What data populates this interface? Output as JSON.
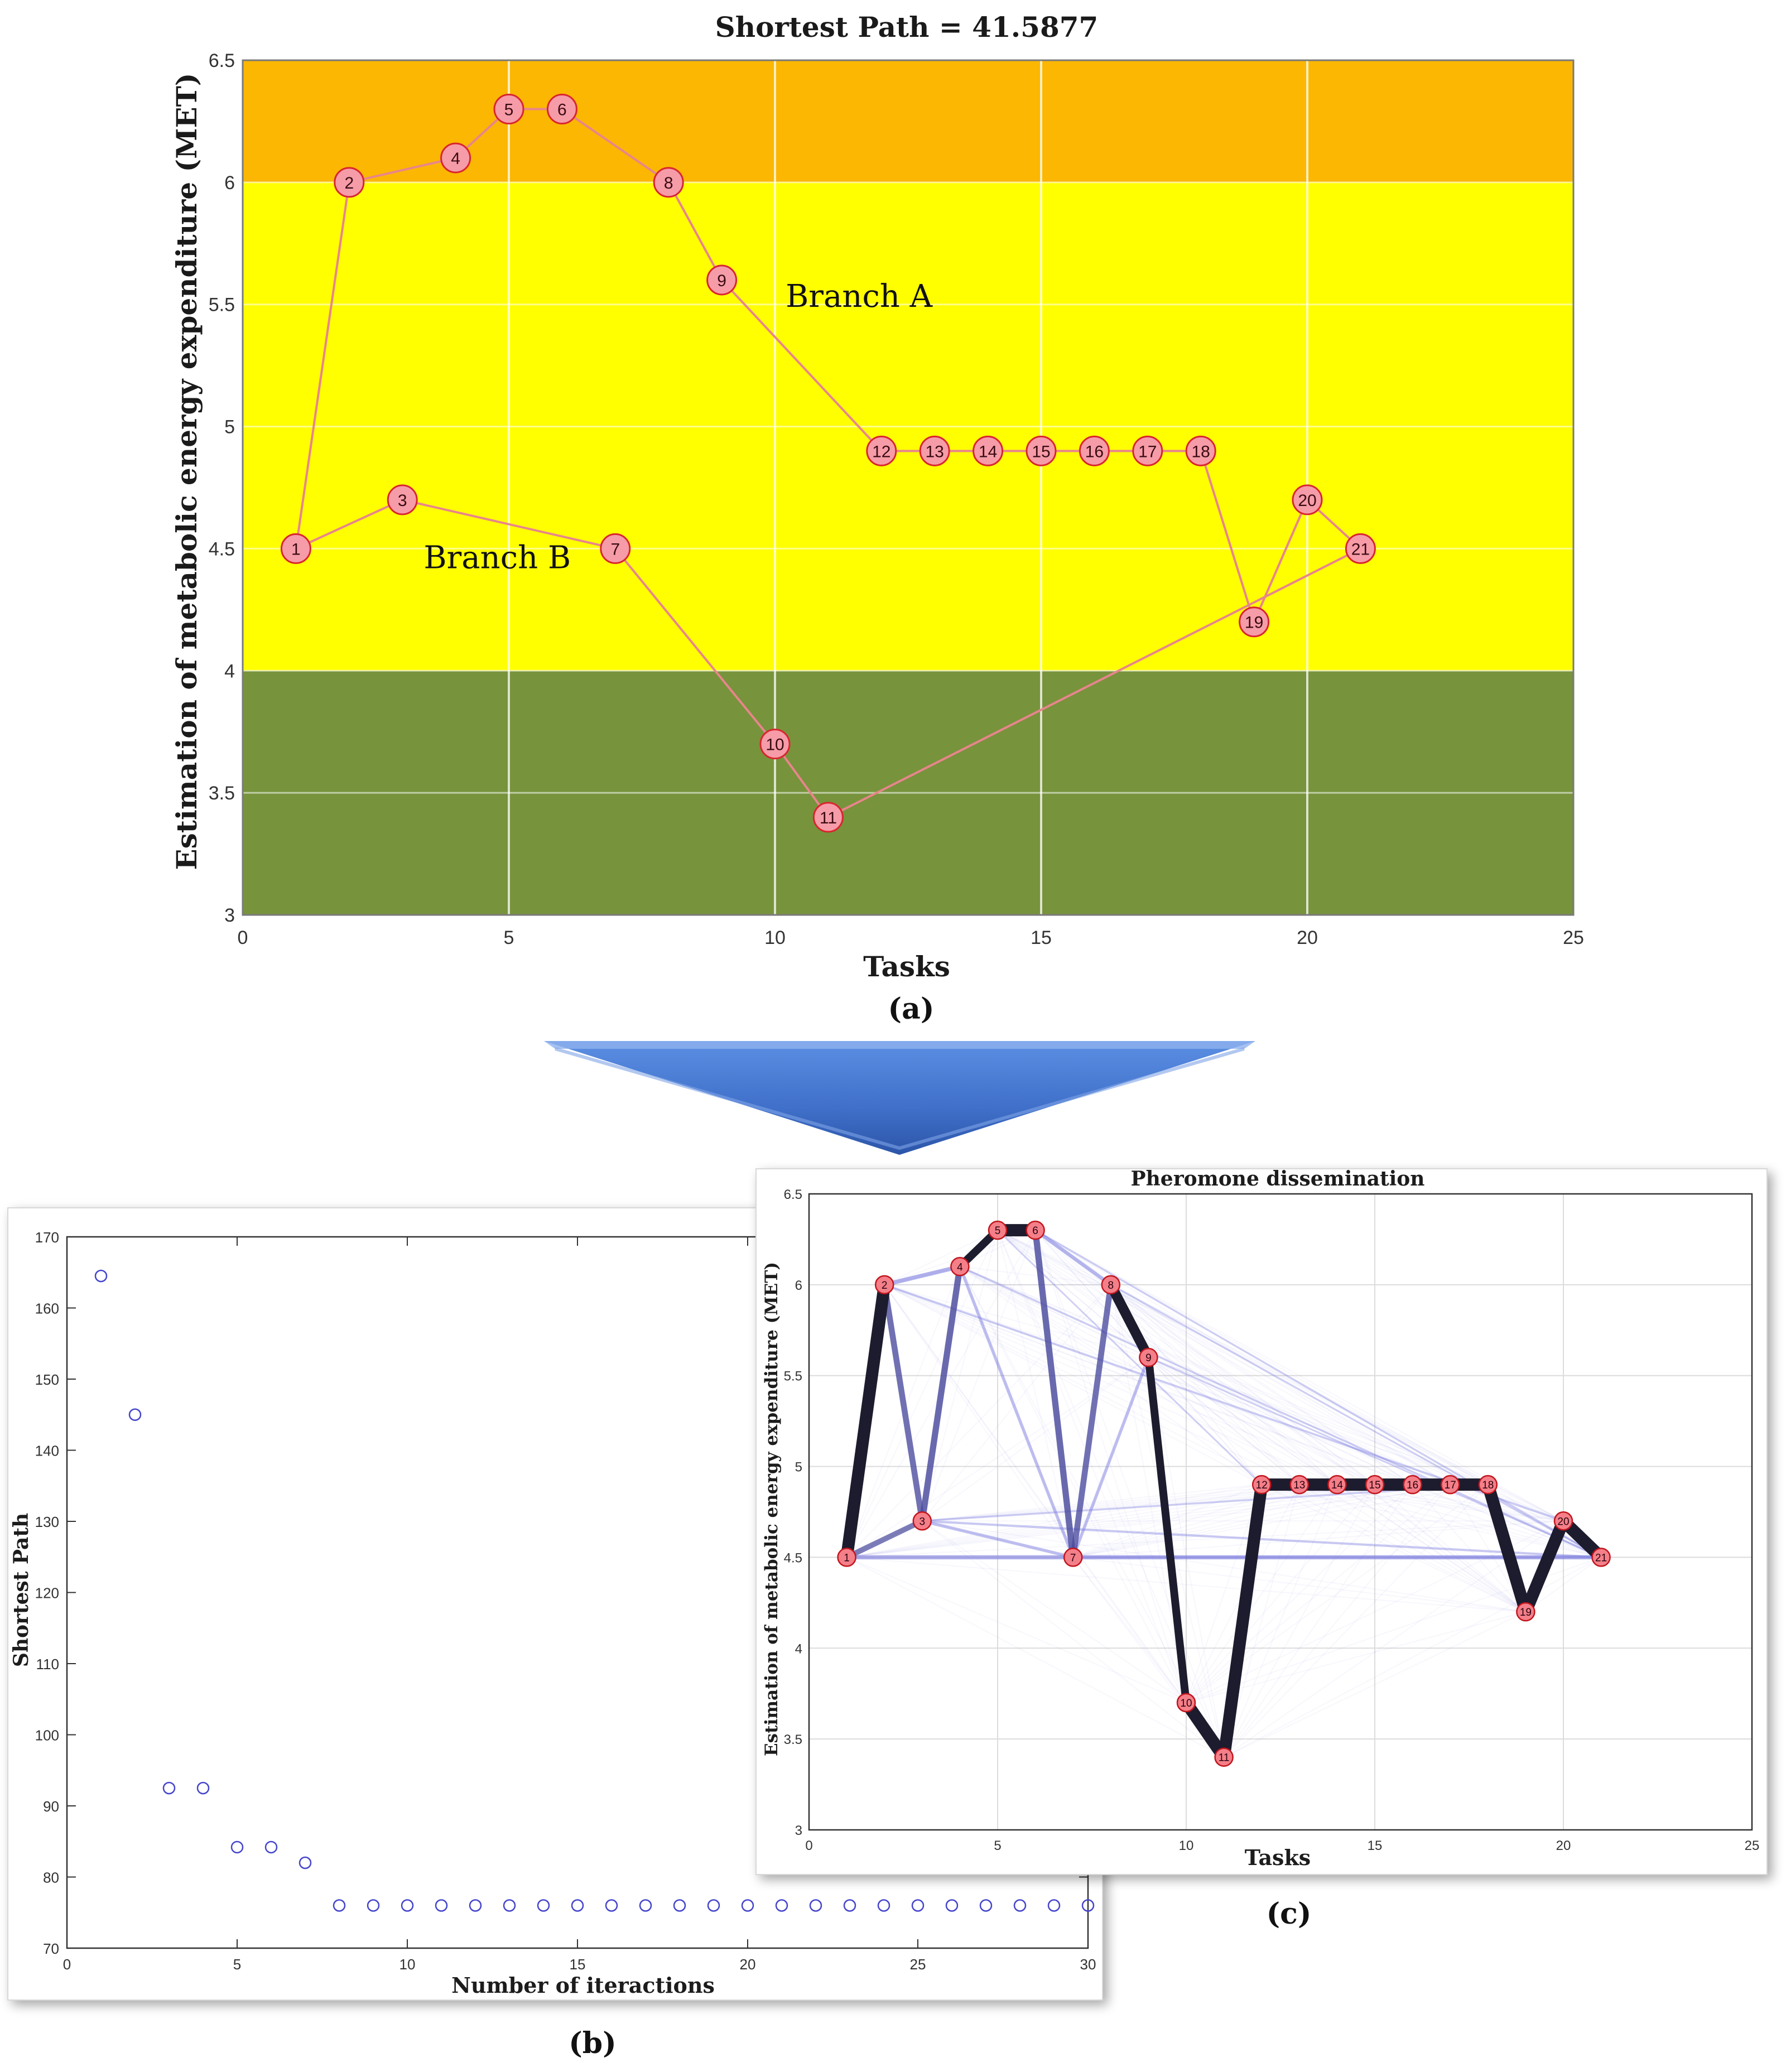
{
  "figure": {
    "label_a": "(a)",
    "label_b": "(b)",
    "label_c": "(c)"
  },
  "colors": {
    "red_zone": "#FBB701",
    "yellow_zone": "#FFFF00",
    "green_zone": "#77933C",
    "node_fill": "#F59CA8",
    "node_stroke": "#D9252F",
    "path_line": "#E8858C",
    "marker_b": "#4444CC",
    "pheromone": "#1A1A2E",
    "arrow": "#4F7FD6"
  },
  "chart_data": [
    {
      "id": "a",
      "type": "line",
      "title": "Shortest Path = 41.5877",
      "xlabel": "Tasks",
      "ylabel": "Estimation of metabolic energy expenditure (MET)",
      "xlim": [
        0,
        25
      ],
      "ylim": [
        3,
        6.5
      ],
      "xticks": [
        0,
        5,
        10,
        15,
        20,
        25
      ],
      "yticks": [
        3,
        3.5,
        4,
        4.5,
        5,
        5.5,
        6,
        6.5
      ],
      "ytick_labels": [
        "3",
        "3.5",
        "4",
        "4.5",
        "5",
        "5.5",
        "6",
        "6.5"
      ],
      "grid": true,
      "zones": [
        {
          "from": 6,
          "to": 6.5,
          "color": "#FBB701"
        },
        {
          "from": 4,
          "to": 6,
          "color": "#FFFF00"
        },
        {
          "from": 3,
          "to": 4,
          "color": "#77933C"
        }
      ],
      "nodes": [
        {
          "id": "1",
          "x": 1,
          "y": 4.5
        },
        {
          "id": "2",
          "x": 2,
          "y": 6.0
        },
        {
          "id": "3",
          "x": 3,
          "y": 4.7
        },
        {
          "id": "4",
          "x": 4,
          "y": 6.1
        },
        {
          "id": "5",
          "x": 5,
          "y": 6.3
        },
        {
          "id": "6",
          "x": 6,
          "y": 6.3
        },
        {
          "id": "7",
          "x": 7,
          "y": 4.5
        },
        {
          "id": "8",
          "x": 8,
          "y": 6.0
        },
        {
          "id": "9",
          "x": 9,
          "y": 5.6
        },
        {
          "id": "10",
          "x": 10,
          "y": 3.7
        },
        {
          "id": "11",
          "x": 11,
          "y": 3.4
        },
        {
          "id": "12",
          "x": 12,
          "y": 4.9
        },
        {
          "id": "13",
          "x": 13,
          "y": 4.9
        },
        {
          "id": "14",
          "x": 14,
          "y": 4.9
        },
        {
          "id": "15",
          "x": 15,
          "y": 4.9
        },
        {
          "id": "16",
          "x": 16,
          "y": 4.9
        },
        {
          "id": "17",
          "x": 17,
          "y": 4.9
        },
        {
          "id": "18",
          "x": 18,
          "y": 4.9
        },
        {
          "id": "19",
          "x": 19,
          "y": 4.2
        },
        {
          "id": "20",
          "x": 20,
          "y": 4.7
        },
        {
          "id": "21",
          "x": 21,
          "y": 4.5
        }
      ],
      "edges": [
        [
          "1",
          "2"
        ],
        [
          "2",
          "4"
        ],
        [
          "4",
          "5"
        ],
        [
          "5",
          "6"
        ],
        [
          "6",
          "8"
        ],
        [
          "8",
          "9"
        ],
        [
          "9",
          "12"
        ],
        [
          "12",
          "13"
        ],
        [
          "13",
          "14"
        ],
        [
          "14",
          "15"
        ],
        [
          "15",
          "16"
        ],
        [
          "16",
          "17"
        ],
        [
          "17",
          "18"
        ],
        [
          "18",
          "19"
        ],
        [
          "19",
          "20"
        ],
        [
          "20",
          "21"
        ],
        [
          "1",
          "3"
        ],
        [
          "3",
          "7"
        ],
        [
          "7",
          "10"
        ],
        [
          "10",
          "11"
        ],
        [
          "11",
          "21"
        ]
      ],
      "annotations": [
        {
          "text": "Branch A",
          "x": 10.2,
          "y": 5.49
        },
        {
          "text": "Branch B",
          "x": 3.4,
          "y": 4.42
        }
      ]
    },
    {
      "id": "b",
      "type": "scatter",
      "title": "",
      "xlabel": "Number of iteractions",
      "ylabel": "Shortest Path",
      "xlim": [
        0,
        30
      ],
      "ylim": [
        70,
        170
      ],
      "xticks": [
        0,
        5,
        10,
        15,
        20,
        25,
        30
      ],
      "yticks": [
        70,
        80,
        90,
        100,
        110,
        120,
        130,
        140,
        150,
        160,
        170
      ],
      "x": [
        1,
        2,
        3,
        4,
        5,
        6,
        7,
        8,
        9,
        10,
        11,
        12,
        13,
        14,
        15,
        16,
        17,
        18,
        19,
        20,
        21,
        22,
        23,
        24,
        25,
        26,
        27,
        28,
        29,
        30
      ],
      "y": [
        164.5,
        145,
        92.5,
        92.5,
        84.2,
        84.2,
        82,
        76,
        76,
        76,
        76,
        76,
        76,
        76,
        76,
        76,
        76,
        76,
        76,
        76,
        76,
        76,
        76,
        76,
        76,
        76,
        76,
        76,
        76,
        76
      ]
    },
    {
      "id": "c",
      "type": "line",
      "title": "Pheromone dissemination",
      "xlabel": "Tasks",
      "ylabel": "Estimation of metabolic energy expenditure (MET)",
      "xlim": [
        0,
        25
      ],
      "ylim": [
        3,
        6.5
      ],
      "xticks": [
        0,
        5,
        10,
        15,
        20,
        25
      ],
      "yticks": [
        3,
        3.5,
        4,
        4.5,
        5,
        5.5,
        6,
        6.5
      ],
      "grid": true,
      "strong_edges": [
        [
          "1",
          "2",
          1.0
        ],
        [
          "2",
          "3",
          0.6
        ],
        [
          "3",
          "4",
          0.7
        ],
        [
          "4",
          "5",
          0.9
        ],
        [
          "5",
          "6",
          1.0
        ],
        [
          "6",
          "7",
          0.7
        ],
        [
          "7",
          "8",
          0.6
        ],
        [
          "8",
          "9",
          0.95
        ],
        [
          "9",
          "10",
          0.9
        ],
        [
          "10",
          "11",
          1.0
        ],
        [
          "11",
          "12",
          1.0
        ],
        [
          "12",
          "13",
          1.0
        ],
        [
          "13",
          "14",
          1.0
        ],
        [
          "14",
          "15",
          1.0
        ],
        [
          "15",
          "16",
          1.0
        ],
        [
          "16",
          "17",
          1.0
        ],
        [
          "17",
          "18",
          1.0
        ],
        [
          "18",
          "19",
          1.0
        ],
        [
          "19",
          "20",
          1.0
        ],
        [
          "20",
          "21",
          1.0
        ],
        [
          "1",
          "3",
          0.45
        ],
        [
          "2",
          "4",
          0.3
        ],
        [
          "4",
          "7",
          0.2
        ],
        [
          "6",
          "8",
          0.25
        ],
        [
          "3",
          "7",
          0.2
        ],
        [
          "7",
          "9",
          0.2
        ],
        [
          "1",
          "21",
          0.3
        ],
        [
          "3",
          "21",
          0.12
        ],
        [
          "2",
          "20",
          0.1
        ],
        [
          "4",
          "21",
          0.08
        ],
        [
          "6",
          "21",
          0.08
        ],
        [
          "5",
          "12",
          0.06
        ],
        [
          "8",
          "21",
          0.07
        ],
        [
          "9",
          "21",
          0.06
        ],
        [
          "7",
          "21",
          0.1
        ],
        [
          "3",
          "18",
          0.08
        ]
      ]
    }
  ]
}
